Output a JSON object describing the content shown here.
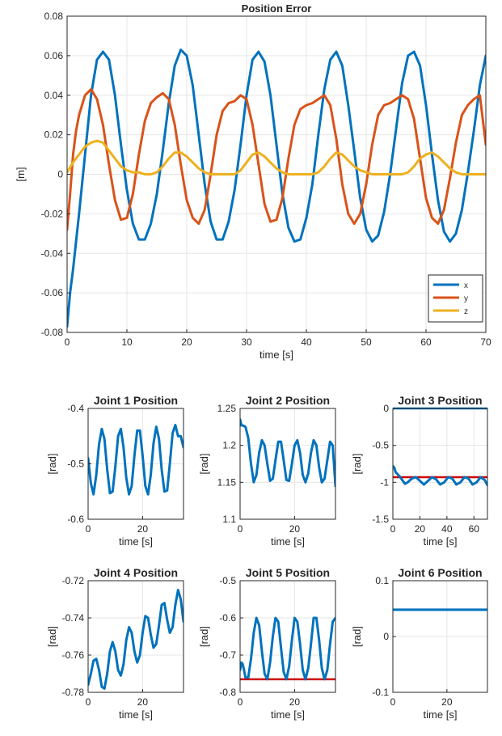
{
  "colors": {
    "x": "#0072BD",
    "y": "#D95319",
    "z": "#EDB120",
    "limit": "#CC0000",
    "grid": "#E6E6E6",
    "axis": "#262626"
  },
  "chart_data": [
    {
      "type": "line",
      "title": "Position Error",
      "xlabel": "time [s]",
      "ylabel": "[m]",
      "xlim": [
        0,
        70
      ],
      "ylim": [
        -0.08,
        0.08
      ],
      "xticks": [
        "0",
        "10",
        "20",
        "30",
        "40",
        "50",
        "60",
        "70"
      ],
      "yticks": [
        "-0.08",
        "-0.06",
        "-0.04",
        "-0.02",
        "0",
        "0.02",
        "0.04",
        "0.06",
        "0.08"
      ],
      "grid": true,
      "legend": "bottom-right",
      "series": [
        {
          "name": "x",
          "color_key": "x",
          "x": [
            0,
            0.5,
            1,
            2,
            3,
            4,
            5,
            6,
            7,
            8,
            9,
            10,
            11,
            12,
            13,
            14,
            15,
            16,
            17,
            18,
            19,
            20,
            21,
            22,
            23,
            24,
            25,
            26,
            27,
            28,
            29,
            30,
            31,
            32,
            33,
            34,
            35,
            36,
            37,
            38,
            39,
            40,
            41,
            42,
            43,
            44,
            45,
            46,
            47,
            48,
            49,
            50,
            51,
            52,
            53,
            54,
            55,
            56,
            57,
            58,
            59,
            60,
            61,
            62,
            63,
            64,
            65,
            66,
            67,
            68,
            69,
            70
          ],
          "y": [
            -0.077,
            -0.06,
            -0.048,
            -0.02,
            0.01,
            0.04,
            0.058,
            0.062,
            0.058,
            0.04,
            0.015,
            -0.008,
            -0.025,
            -0.033,
            -0.033,
            -0.025,
            -0.01,
            0.012,
            0.036,
            0.055,
            0.063,
            0.06,
            0.045,
            0.02,
            -0.005,
            -0.024,
            -0.033,
            -0.033,
            -0.024,
            -0.008,
            0.015,
            0.04,
            0.058,
            0.062,
            0.057,
            0.04,
            0.015,
            -0.01,
            -0.027,
            -0.034,
            -0.033,
            -0.022,
            -0.005,
            0.02,
            0.043,
            0.058,
            0.062,
            0.055,
            0.035,
            0.012,
            -0.012,
            -0.028,
            -0.034,
            -0.031,
            -0.019,
            0.0,
            0.023,
            0.046,
            0.06,
            0.062,
            0.055,
            0.035,
            0.01,
            -0.013,
            -0.029,
            -0.034,
            -0.03,
            -0.018,
            0.001,
            0.022,
            0.045,
            0.06
          ]
        },
        {
          "name": "y",
          "color_key": "y",
          "x": [
            0,
            0.5,
            1,
            1.5,
            2,
            3,
            4,
            5,
            6,
            7,
            8,
            9,
            10,
            11,
            12,
            13,
            14,
            15,
            16,
            17,
            18,
            19,
            20,
            21,
            22,
            23,
            24,
            25,
            26,
            27,
            28,
            29,
            30,
            31,
            32,
            33,
            34,
            35,
            36,
            37,
            38,
            39,
            40,
            41,
            42,
            43,
            44,
            45,
            46,
            47,
            48,
            49,
            50,
            51,
            52,
            53,
            54,
            55,
            56,
            57,
            58,
            59,
            60,
            61,
            62,
            63,
            64,
            65,
            66,
            67,
            68,
            69,
            70
          ],
          "y": [
            -0.028,
            -0.01,
            0.01,
            0.022,
            0.03,
            0.04,
            0.043,
            0.038,
            0.025,
            0.005,
            -0.013,
            -0.023,
            -0.022,
            -0.01,
            0.01,
            0.027,
            0.036,
            0.039,
            0.041,
            0.038,
            0.025,
            0.005,
            -0.013,
            -0.022,
            -0.025,
            -0.018,
            0.0,
            0.02,
            0.032,
            0.036,
            0.037,
            0.04,
            0.038,
            0.025,
            0.005,
            -0.015,
            -0.024,
            -0.023,
            -0.012,
            0.008,
            0.025,
            0.033,
            0.035,
            0.036,
            0.038,
            0.04,
            0.035,
            0.018,
            -0.005,
            -0.02,
            -0.025,
            -0.02,
            -0.005,
            0.015,
            0.03,
            0.035,
            0.036,
            0.038,
            0.04,
            0.038,
            0.028,
            0.008,
            -0.012,
            -0.022,
            -0.025,
            -0.018,
            -0.002,
            0.016,
            0.03,
            0.035,
            0.038,
            0.04,
            0.015
          ]
        },
        {
          "name": "z",
          "color_key": "z",
          "x": [
            0,
            1,
            2,
            3,
            4,
            5,
            6,
            7,
            8,
            9,
            10,
            11,
            12,
            13,
            14,
            15,
            16,
            17,
            18,
            19,
            20,
            21,
            22,
            23,
            24,
            25,
            26,
            27,
            28,
            29,
            30,
            31,
            32,
            33,
            34,
            35,
            36,
            37,
            38,
            39,
            40,
            41,
            42,
            43,
            44,
            45,
            46,
            47,
            48,
            49,
            50,
            51,
            52,
            53,
            54,
            55,
            56,
            57,
            58,
            59,
            60,
            61,
            62,
            63,
            64,
            65,
            66,
            67,
            68,
            69,
            70
          ],
          "y": [
            0.001,
            0.006,
            0.01,
            0.014,
            0.016,
            0.017,
            0.016,
            0.012,
            0.008,
            0.004,
            0.002,
            0.001,
            0.001,
            0.0,
            0.0,
            0.001,
            0.004,
            0.008,
            0.011,
            0.011,
            0.009,
            0.006,
            0.003,
            0.001,
            0.0,
            0.0,
            0.0,
            0.0,
            0.0,
            0.002,
            0.006,
            0.01,
            0.011,
            0.009,
            0.006,
            0.003,
            0.001,
            0.0,
            0.0,
            0.0,
            0.0,
            0.0,
            0.001,
            0.004,
            0.008,
            0.011,
            0.01,
            0.007,
            0.004,
            0.002,
            0.001,
            0.0,
            0.0,
            0.0,
            0.0,
            0.0,
            0.0,
            0.001,
            0.004,
            0.008,
            0.01,
            0.011,
            0.009,
            0.006,
            0.003,
            0.001,
            0.0,
            0.0,
            0.0,
            0.0,
            0.0
          ]
        }
      ]
    },
    {
      "type": "line",
      "title": "Joint 1 Position",
      "xlabel": "time [s]",
      "ylabel": "[rad]",
      "xlim": [
        0,
        35
      ],
      "ylim": [
        -0.6,
        -0.4
      ],
      "xticks": [
        "0",
        "20"
      ],
      "yticks": [
        "-0.6",
        "-0.5",
        "-0.4"
      ],
      "grid": true,
      "series": [
        {
          "color_key": "x",
          "x": [
            0,
            1,
            2,
            3,
            4,
            5,
            6,
            7,
            8,
            9,
            10,
            11,
            12,
            13,
            14,
            15,
            16,
            17,
            18,
            19,
            20,
            21,
            22,
            23,
            24,
            25,
            26,
            27,
            28,
            29,
            30,
            31,
            32,
            33,
            34,
            35
          ],
          "y": [
            -0.49,
            -0.535,
            -0.555,
            -0.52,
            -0.465,
            -0.437,
            -0.455,
            -0.51,
            -0.553,
            -0.55,
            -0.505,
            -0.45,
            -0.437,
            -0.47,
            -0.525,
            -0.555,
            -0.54,
            -0.485,
            -0.44,
            -0.44,
            -0.485,
            -0.54,
            -0.555,
            -0.52,
            -0.463,
            -0.433,
            -0.455,
            -0.51,
            -0.55,
            -0.548,
            -0.5,
            -0.445,
            -0.43,
            -0.45,
            -0.45,
            -0.47
          ]
        }
      ]
    },
    {
      "type": "line",
      "title": "Joint 2 Position",
      "xlabel": "time [s]",
      "ylabel": "[rad]",
      "xlim": [
        0,
        35
      ],
      "ylim": [
        1.1,
        1.25
      ],
      "xticks": [
        "0",
        "20"
      ],
      "yticks": [
        "1.1",
        "1.15",
        "1.2",
        "1.25"
      ],
      "grid": true,
      "series": [
        {
          "color_key": "x",
          "x": [
            0,
            0.5,
            1,
            2,
            3,
            4,
            5,
            6,
            7,
            8,
            9,
            10,
            11,
            12,
            13,
            14,
            15,
            16,
            17,
            18,
            19,
            20,
            21,
            22,
            23,
            24,
            25,
            26,
            27,
            28,
            29,
            30,
            31,
            32,
            33,
            34,
            35
          ],
          "y": [
            1.235,
            1.227,
            1.227,
            1.225,
            1.21,
            1.175,
            1.15,
            1.16,
            1.19,
            1.207,
            1.2,
            1.175,
            1.152,
            1.155,
            1.18,
            1.205,
            1.205,
            1.18,
            1.153,
            1.152,
            1.175,
            1.2,
            1.207,
            1.19,
            1.16,
            1.15,
            1.162,
            1.19,
            1.207,
            1.2,
            1.17,
            1.15,
            1.155,
            1.18,
            1.205,
            1.2,
            1.145
          ]
        }
      ]
    },
    {
      "type": "line",
      "title": "Joint 3 Position",
      "xlabel": "time [s]",
      "ylabel": "[rad]",
      "xlim": [
        0,
        70
      ],
      "ylim": [
        -1.5,
        0
      ],
      "xticks": [
        "0",
        "20",
        "40",
        "60"
      ],
      "yticks": [
        "-1.5",
        "-1",
        "-0.5",
        "0"
      ],
      "grid": true,
      "hlines": [
        {
          "y": 0,
          "color_key": "x"
        },
        {
          "y": -0.93,
          "color_key": "limit"
        }
      ],
      "series": [
        {
          "color_key": "x",
          "x": [
            0,
            1,
            2,
            3,
            5,
            7,
            9,
            11,
            14,
            17,
            20,
            23,
            26,
            29,
            32,
            35,
            38,
            41,
            44,
            47,
            50,
            53,
            56,
            59,
            62,
            65,
            68,
            70
          ],
          "y": [
            -0.78,
            -0.8,
            -0.86,
            -0.88,
            -0.92,
            -0.97,
            -1.02,
            -1.0,
            -0.95,
            -0.93,
            -0.98,
            -1.03,
            -0.98,
            -0.93,
            -0.96,
            -1.03,
            -1.0,
            -0.93,
            -0.95,
            -1.03,
            -1.0,
            -0.93,
            -0.95,
            -1.03,
            -1.0,
            -0.93,
            -0.97,
            -1.04
          ]
        }
      ]
    },
    {
      "type": "line",
      "title": "Joint 4 Position",
      "xlabel": "time [s]",
      "ylabel": "[rad]",
      "xlim": [
        0,
        35
      ],
      "ylim": [
        -0.78,
        -0.72
      ],
      "xticks": [
        "0",
        "20"
      ],
      "yticks": [
        "-0.78",
        "-0.76",
        "-0.74",
        "-0.72"
      ],
      "grid": true,
      "series": [
        {
          "color_key": "x",
          "x": [
            0,
            1,
            2,
            3,
            4,
            5,
            6,
            7,
            8,
            9,
            10,
            11,
            12,
            13,
            14,
            15,
            16,
            17,
            18,
            19,
            20,
            21,
            22,
            23,
            24,
            25,
            26,
            27,
            28,
            29,
            30,
            31,
            32,
            33,
            34,
            35
          ],
          "y": [
            -0.776,
            -0.77,
            -0.763,
            -0.762,
            -0.768,
            -0.777,
            -0.778,
            -0.77,
            -0.758,
            -0.753,
            -0.758,
            -0.768,
            -0.771,
            -0.765,
            -0.752,
            -0.745,
            -0.748,
            -0.758,
            -0.764,
            -0.76,
            -0.748,
            -0.739,
            -0.74,
            -0.749,
            -0.756,
            -0.754,
            -0.744,
            -0.733,
            -0.732,
            -0.741,
            -0.748,
            -0.745,
            -0.733,
            -0.725,
            -0.73,
            -0.742
          ]
        }
      ]
    },
    {
      "type": "line",
      "title": "Joint 5 Position",
      "xlabel": "time [s]",
      "ylabel": "[rad]",
      "xlim": [
        0,
        35
      ],
      "ylim": [
        -0.8,
        -0.5
      ],
      "xticks": [
        "0",
        "20"
      ],
      "yticks": [
        "-0.8",
        "-0.7",
        "-0.6",
        "-0.5"
      ],
      "grid": true,
      "hlines": [
        {
          "y": -0.765,
          "color_key": "limit"
        }
      ],
      "series": [
        {
          "color_key": "x",
          "x": [
            0,
            0.5,
            1,
            2,
            3,
            4,
            5,
            6,
            7,
            8,
            9,
            10,
            11,
            12,
            13,
            14,
            15,
            16,
            17,
            18,
            19,
            20,
            21,
            22,
            23,
            24,
            25,
            26,
            27,
            28,
            29,
            30,
            31,
            32,
            33,
            34,
            35
          ],
          "y": [
            -0.74,
            -0.72,
            -0.725,
            -0.76,
            -0.76,
            -0.71,
            -0.64,
            -0.6,
            -0.62,
            -0.69,
            -0.75,
            -0.765,
            -0.72,
            -0.65,
            -0.6,
            -0.61,
            -0.68,
            -0.745,
            -0.765,
            -0.73,
            -0.66,
            -0.6,
            -0.61,
            -0.67,
            -0.74,
            -0.765,
            -0.735,
            -0.67,
            -0.6,
            -0.6,
            -0.66,
            -0.735,
            -0.765,
            -0.74,
            -0.67,
            -0.61,
            -0.6
          ]
        }
      ]
    },
    {
      "type": "line",
      "title": "Joint 6 Position",
      "xlabel": "time [s]",
      "ylabel": "[rad]",
      "xlim": [
        0,
        35
      ],
      "ylim": [
        -0.1,
        0.1
      ],
      "xticks": [
        "0",
        "20"
      ],
      "yticks": [
        "-0.1",
        "0",
        "0.1"
      ],
      "grid": true,
      "series": [
        {
          "color_key": "x",
          "x": [
            0,
            35
          ],
          "y": [
            0.048,
            0.048
          ]
        }
      ]
    }
  ]
}
